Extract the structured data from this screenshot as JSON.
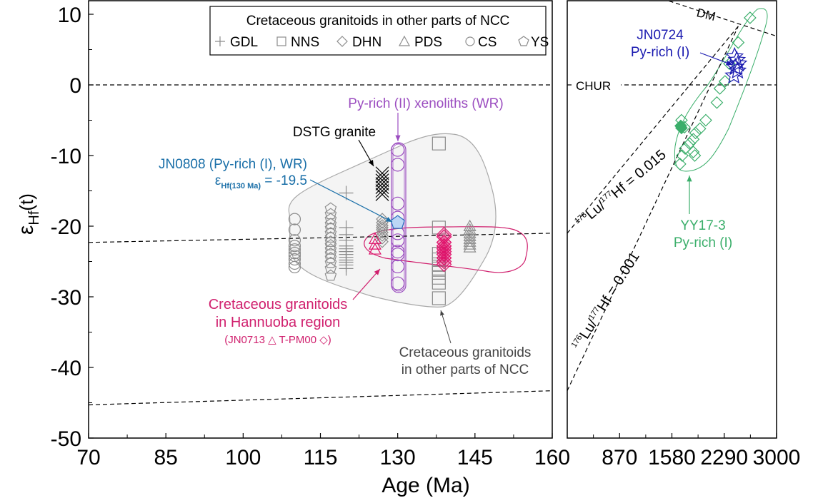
{
  "colors": {
    "gray": "#8c8c8c",
    "black": "#000000",
    "purple": "#9b4dc0",
    "magenta": "#e0106a",
    "magenta_text": "#d0206e",
    "blue_annot": "#1a6fa8",
    "pentagon_fill": "#bcd6f5",
    "pentagon_stroke": "#2a6fc0",
    "green": "#3aae6a",
    "navy": "#1a1ab0",
    "field_fill": "#f4f4f4",
    "field_stroke": "#a8a8a8"
  },
  "chart_data": [
    {
      "type": "scatter",
      "panel": "left",
      "xlabel": "Age (Ma)",
      "ylabel": "εHf (t)",
      "xlim": [
        70,
        160
      ],
      "ylim": [
        -50,
        12
      ],
      "xticks": [
        70,
        85,
        100,
        115,
        130,
        145,
        160
      ],
      "xtick_labels": [
        "70",
        "85",
        "100",
        "115",
        "130",
        "145",
        "160"
      ],
      "yticks": [
        10,
        0,
        -10,
        -20,
        -30,
        -40,
        -50
      ],
      "ytick_labels": [
        "10",
        "0",
        "-10",
        "-20",
        "-30",
        "-40",
        "-50"
      ],
      "grid": false,
      "legend": {
        "title": "Cretaceous granitoids in other parts of NCC",
        "placement": "top-right",
        "entries": [
          {
            "label": "GDL",
            "marker": "plus"
          },
          {
            "label": "NNS",
            "marker": "square"
          },
          {
            "label": "DHN",
            "marker": "diamond"
          },
          {
            "label": "PDS",
            "marker": "triangle"
          },
          {
            "label": "CS",
            "marker": "circle"
          },
          {
            "label": "YS",
            "marker": "pentagon"
          }
        ]
      },
      "reference_lines": [
        {
          "name": "CHUR",
          "x": [
            70,
            160
          ],
          "y": [
            0,
            0
          ]
        },
        {
          "name": "line-mid",
          "x": [
            70,
            160
          ],
          "y": [
            -22.3,
            -21.0
          ]
        },
        {
          "name": "line-low",
          "x": [
            70,
            160
          ],
          "y": [
            -45.3,
            -43.3
          ]
        }
      ],
      "series": [
        {
          "name": "CS",
          "marker": "circle",
          "color": "gray",
          "x": [
            110,
            110,
            110,
            110,
            110,
            110,
            110,
            110,
            110,
            110
          ],
          "y": [
            -19,
            -20.5,
            -22,
            -22.8,
            -23.3,
            -23.8,
            -24.2,
            -24.7,
            -25.3,
            -25.8
          ]
        },
        {
          "name": "YS",
          "marker": "pentagon",
          "color": "gray",
          "x": [
            117,
            117,
            117,
            117,
            117,
            117,
            117,
            117,
            117,
            117,
            117,
            117,
            117,
            117,
            117
          ],
          "y": [
            -17.5,
            -18.3,
            -19,
            -19.7,
            -20.3,
            -21,
            -21.6,
            -22.2,
            -22.7,
            -23.3,
            -23.9,
            -24.5,
            -25.2,
            -26,
            -27
          ]
        },
        {
          "name": "GDL",
          "marker": "plus",
          "color": "gray",
          "x": [
            120,
            120,
            120,
            120,
            120,
            120,
            120,
            120,
            120,
            120,
            120,
            120,
            120
          ],
          "y": [
            -15.3,
            -20.2,
            -21.2,
            -22,
            -22.8,
            -23.2,
            -23.6,
            -24,
            -24.4,
            -24.8,
            -25.1,
            -25.5,
            -26
          ]
        },
        {
          "name": "DHN",
          "marker": "diamond",
          "color": "gray",
          "x": [
            127,
            127,
            127,
            127,
            127,
            127,
            127,
            127,
            127
          ],
          "y": [
            -19,
            -19.5,
            -19.9,
            -20.2,
            -20.5,
            -20.9,
            -21.3,
            -21.7,
            -22.2
          ]
        },
        {
          "name": "NNS",
          "marker": "square",
          "color": "gray",
          "x": [
            138,
            138,
            138,
            138,
            138,
            138,
            138,
            138,
            138,
            138
          ],
          "y": [
            -8.3,
            -20.2,
            -23.9,
            -24.7,
            -25.4,
            -26,
            -26.6,
            -27.3,
            -28,
            -30.2
          ]
        },
        {
          "name": "PDS",
          "marker": "triangle",
          "color": "gray",
          "x": [
            144,
            144,
            144,
            144,
            144,
            144,
            144,
            144
          ],
          "y": [
            -20,
            -20.5,
            -21,
            -21.4,
            -21.8,
            -22.2,
            -22.6,
            -23
          ]
        },
        {
          "name": "DSTG granite",
          "marker": "x",
          "color": "black",
          "x": [
            127,
            127,
            127,
            127,
            127,
            127,
            127
          ],
          "y": [
            -12.5,
            -13,
            -13.5,
            -14,
            -14.5,
            -15,
            -15.5
          ]
        },
        {
          "name": "Py-rich (II) xenoliths (WR)",
          "marker": "circle",
          "color": "purple",
          "x": [
            130,
            130,
            130,
            130,
            130,
            130,
            130,
            130,
            130,
            130
          ],
          "y": [
            -9.2,
            -11.3,
            -16.8,
            -18.8,
            -22,
            -23.6,
            -24,
            -25.7,
            -28.1,
            -21
          ]
        },
        {
          "name": "JN0808 (Py-rich (I), WR)",
          "marker": "pentagon-filled",
          "color": "blue",
          "x": [
            130
          ],
          "y": [
            -19.5
          ]
        },
        {
          "name": "JN0713",
          "marker": "triangle",
          "color": "magenta",
          "x": [
            125.6,
            125.6,
            125.6
          ],
          "y": [
            -21.8,
            -22.6,
            -23.3
          ]
        },
        {
          "name": "T-PM00",
          "marker": "diamond",
          "color": "magenta",
          "x": [
            139,
            139,
            139,
            139,
            139,
            139,
            139,
            139,
            139,
            139
          ],
          "y": [
            -21.5,
            -22.3,
            -22.8,
            -23.2,
            -23.6,
            -24,
            -24.5,
            -25,
            -21.2,
            -25.4
          ]
        }
      ],
      "annotations": [
        {
          "text": "Py-rich (II) xenoliths (WR)",
          "color": "purple"
        },
        {
          "text": "DSTG granite",
          "color": "black"
        },
        {
          "text": "JN0808 (Py-rich (I), WR)",
          "color": "blue"
        },
        {
          "text": "εHf(130 Ma) = -19.5",
          "color": "blue"
        },
        {
          "text": "Cretaceous granitoids in Hannuoba region",
          "color": "magenta"
        },
        {
          "text": "(JN0713 △  T-PM00 ◇)",
          "color": "magenta"
        },
        {
          "text": "Cretaceous granitoids in other parts of NCC",
          "color": "gray"
        }
      ]
    },
    {
      "type": "scatter",
      "panel": "right",
      "xlim": [
        160,
        3000
      ],
      "ylim": [
        -50,
        12
      ],
      "xticks": [
        160,
        870,
        1580,
        2290,
        3000
      ],
      "xtick_labels": [
        "160",
        "870",
        "1580",
        "2290",
        "3000"
      ],
      "grid": false,
      "reference_lines": [
        {
          "name": "DM",
          "x": [
            160,
            3000
          ],
          "y": [
            16.6,
            6.9
          ]
        },
        {
          "name": "CHUR",
          "x": [
            160,
            3000
          ],
          "y": [
            0,
            0
          ]
        },
        {
          "name": "176Lu/177Hf = 0.015",
          "x": [
            160,
            2480
          ],
          "y": [
            -21,
            8.3
          ]
        },
        {
          "name": "176Lu/177Hf = 0.001",
          "x": [
            160,
            2480
          ],
          "y": [
            -43.3,
            8.3
          ]
        }
      ],
      "series": [
        {
          "name": "YY17-3 Py-rich (I)",
          "marker": "square-rotated",
          "color": "green",
          "x": [
            2640,
            2480,
            2360,
            2300,
            2230,
            2190,
            2040,
            1960,
            1900,
            1870,
            1820,
            1760,
            1720,
            1690,
            1710,
            1750,
            1870,
            1890
          ],
          "y": [
            9.5,
            6,
            3,
            0.5,
            -0.5,
            -2.5,
            -5,
            -6.2,
            -6.8,
            -7.7,
            -8.3,
            -9,
            -10,
            -11.2,
            -5,
            -6,
            -9.5,
            -10
          ]
        },
        {
          "name": "YY17-3 Py-rich (I) filled",
          "marker": "square-rotated-filled",
          "color": "green",
          "x": [
            1700,
            1710
          ],
          "y": [
            -5.8,
            -6.1
          ]
        },
        {
          "name": "JN0724 Py-rich (I)",
          "marker": "star",
          "color": "navy",
          "x": [
            2430,
            2460,
            2480,
            2440,
            2470,
            2420
          ],
          "y": [
            4,
            3.5,
            3,
            2.5,
            2,
            1.3
          ]
        }
      ],
      "annotations": [
        {
          "text": "DM",
          "color": "black"
        },
        {
          "text": "CHUR",
          "color": "black"
        },
        {
          "text": "176Lu/177Hf = 0.015",
          "color": "black"
        },
        {
          "text": "176Lu/177Hf = 0.001",
          "color": "black"
        },
        {
          "text": "JN0724",
          "color": "navy"
        },
        {
          "text": "Py-rich (I)",
          "color": "navy"
        },
        {
          "text": "YY17-3",
          "color": "green"
        },
        {
          "text": "Py-rich (I)",
          "color": "green"
        }
      ]
    }
  ],
  "labels": {
    "ylabel_eps": "ε",
    "ylabel_sub": "Hf",
    "ylabel_t": "(t)",
    "xlabel": "Age (Ma)",
    "legend_title": "Cretaceous granitoids in other parts of NCC",
    "legend_gdl": "GDL",
    "legend_nns": "NNS",
    "legend_dhn": "DHN",
    "legend_pds": "PDS",
    "legend_cs": "CS",
    "legend_ys": "YS",
    "ann_pyrich2": "Py-rich (II) xenoliths (WR)",
    "ann_dstg": "DSTG granite",
    "ann_jn0808": "JN0808 (Py-rich (I), WR)",
    "ann_eps_pre": "ε",
    "ann_eps_sub": "Hf(130 Ma)",
    "ann_eps_val": " =  -19.5",
    "ann_hann1": "Cretaceous granitoids",
    "ann_hann2": "in Hannuoba region",
    "ann_hann3a": "(JN0713 ",
    "ann_hann3b": "  T-PM00 ",
    "ann_hann3c": ")",
    "ann_ncc1": "Cretaceous granitoids",
    "ann_ncc2": "in other parts of NCC",
    "ann_dm": "DM",
    "ann_chur": "CHUR",
    "ann_lu015_sup1": "176",
    "ann_lu015_a": "Lu/",
    "ann_lu015_sup2": "177",
    "ann_lu015_b": "Hf = 0.015",
    "ann_lu001_sup1": "176",
    "ann_lu001_a": "Lu/",
    "ann_lu001_sup2": "177",
    "ann_lu001_b": "Hf = 0.001",
    "ann_jn0724_1": "JN0724",
    "ann_jn0724_2": "Py-rich (I)",
    "ann_yy1": "YY17-3",
    "ann_yy2": "Py-rich (I)"
  }
}
